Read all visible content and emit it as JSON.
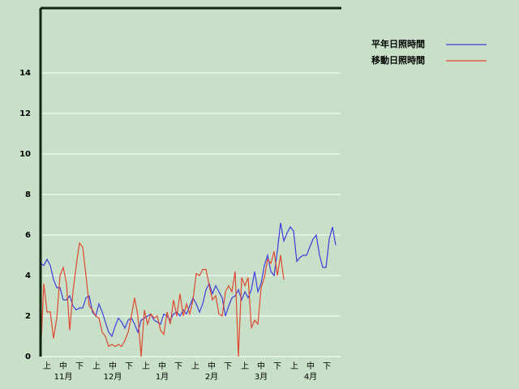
{
  "chart_data": {
    "type": "line",
    "xlim": [
      0,
      92.5
    ],
    "ylim": [
      0,
      17.2
    ],
    "yticks": [
      0,
      2,
      4,
      6,
      8,
      10,
      12,
      14
    ],
    "grid": true,
    "xticks": [
      {
        "value": 2,
        "label": "上"
      },
      {
        "value": 7,
        "label": "中"
      },
      {
        "value": 12,
        "label": "下"
      },
      {
        "value": 17.25,
        "label": "上"
      },
      {
        "value": 22.25,
        "label": "中"
      },
      {
        "value": 27.25,
        "label": "下"
      },
      {
        "value": 32.5,
        "label": "上"
      },
      {
        "value": 37.5,
        "label": "中"
      },
      {
        "value": 42.5,
        "label": "下"
      },
      {
        "value": 47.75,
        "label": "上"
      },
      {
        "value": 52.75,
        "label": "中"
      },
      {
        "value": 57.75,
        "label": "下"
      },
      {
        "value": 63,
        "label": "上"
      },
      {
        "value": 68,
        "label": "中"
      },
      {
        "value": 73,
        "label": "下"
      },
      {
        "value": 78.25,
        "label": "上"
      },
      {
        "value": 83.25,
        "label": "中"
      },
      {
        "value": 88.25,
        "label": "下"
      }
    ],
    "month_ticks": [
      {
        "value": 7,
        "label": "11月"
      },
      {
        "value": 22.25,
        "label": "12月"
      },
      {
        "value": 37.5,
        "label": "1月"
      },
      {
        "value": 52.75,
        "label": "2月"
      },
      {
        "value": 68,
        "label": "3月"
      },
      {
        "value": 83.25,
        "label": "4月"
      }
    ],
    "series": [
      {
        "name": "平年日照時間",
        "color": "#3c3cdc",
        "values": [
          4.6,
          4.5,
          4.8,
          4.5,
          3.8,
          3.4,
          3.4,
          2.8,
          2.8,
          3.0,
          2.5,
          2.3,
          2.4,
          2.4,
          2.9,
          3.0,
          2.2,
          2.0,
          2.6,
          2.2,
          1.7,
          1.2,
          1.0,
          1.5,
          1.9,
          1.7,
          1.4,
          1.8,
          1.9,
          1.6,
          1.2,
          1.8,
          1.9,
          2.0,
          2.1,
          1.8,
          1.7,
          1.6,
          2.1,
          2.0,
          1.8,
          2.1,
          2.2,
          2.0,
          2.3,
          2.1,
          2.5,
          2.9,
          2.6,
          2.2,
          2.6,
          3.3,
          3.6,
          3.1,
          3.5,
          3.2,
          2.9,
          2.0,
          2.5,
          2.9,
          3.0,
          3.3,
          2.8,
          3.2,
          2.9,
          3.3,
          4.2,
          3.2,
          3.6,
          4.5,
          5.0,
          4.2,
          4.0,
          5.2,
          6.6,
          5.7,
          6.1,
          6.4,
          6.2,
          4.7,
          4.9,
          5.0,
          5.0,
          5.4,
          5.8,
          6.0,
          5.0,
          4.4,
          4.4,
          5.8,
          6.4,
          5.5
        ]
      },
      {
        "name": "移動日照時間",
        "color": "#e04830",
        "values": [
          0,
          3.6,
          2.2,
          2.2,
          0.9,
          1.9,
          4.0,
          4.4,
          3.6,
          1.3,
          3.2,
          4.5,
          5.6,
          5.4,
          4.0,
          2.5,
          2.3,
          2.0,
          1.9,
          1.2,
          1.0,
          0.5,
          0.6,
          0.5,
          0.6,
          0.5,
          0.8,
          1.2,
          2.0,
          2.9,
          2.0,
          0,
          2.3,
          1.6,
          2.1,
          1.9,
          2.0,
          1.3,
          1.1,
          2.2,
          1.6,
          2.8,
          2.0,
          3.1,
          2.0,
          2.6,
          2.1,
          2.8,
          4.1,
          4.0,
          4.3,
          4.3,
          3.5,
          2.8,
          3.0,
          2.1,
          2.0,
          3.2,
          3.5,
          3.2,
          4.2,
          0,
          3.9,
          3.5,
          3.9,
          1.4,
          1.8,
          1.6,
          3.4,
          3.9,
          4.8,
          4.6,
          5.2,
          4.0,
          5.0,
          3.8,
          null,
          null,
          null,
          null,
          null,
          null,
          null,
          null,
          null,
          null,
          null,
          null,
          null,
          null,
          null,
          null
        ]
      }
    ]
  }
}
